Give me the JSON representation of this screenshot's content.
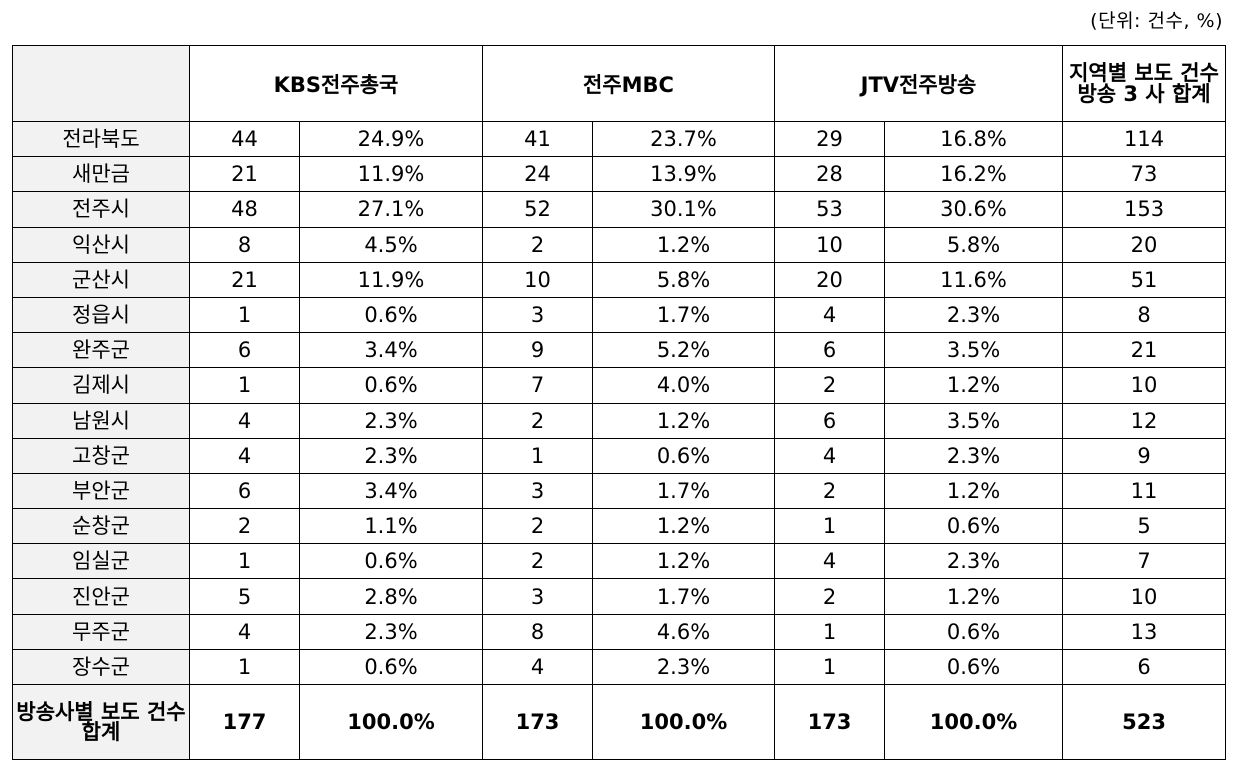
{
  "unit_label": "(단위: 건수, %)",
  "header": {
    "corner": "",
    "stations": [
      "KBS전주총국",
      "전주MBC",
      "JTV전주방송"
    ],
    "sum": "지역별 보도 건수 방송 3 사 합계"
  },
  "rows": [
    {
      "region": "전라북도",
      "kbs_n": "44",
      "kbs_p": "24.9%",
      "mbc_n": "41",
      "mbc_p": "23.7%",
      "jtv_n": "29",
      "jtv_p": "16.8%",
      "sum": "114"
    },
    {
      "region": "새만금",
      "kbs_n": "21",
      "kbs_p": "11.9%",
      "mbc_n": "24",
      "mbc_p": "13.9%",
      "jtv_n": "28",
      "jtv_p": "16.2%",
      "sum": "73"
    },
    {
      "region": "전주시",
      "kbs_n": "48",
      "kbs_p": "27.1%",
      "mbc_n": "52",
      "mbc_p": "30.1%",
      "jtv_n": "53",
      "jtv_p": "30.6%",
      "sum": "153"
    },
    {
      "region": "익산시",
      "kbs_n": "8",
      "kbs_p": "4.5%",
      "mbc_n": "2",
      "mbc_p": "1.2%",
      "jtv_n": "10",
      "jtv_p": "5.8%",
      "sum": "20"
    },
    {
      "region": "군산시",
      "kbs_n": "21",
      "kbs_p": "11.9%",
      "mbc_n": "10",
      "mbc_p": "5.8%",
      "jtv_n": "20",
      "jtv_p": "11.6%",
      "sum": "51"
    },
    {
      "region": "정읍시",
      "kbs_n": "1",
      "kbs_p": "0.6%",
      "mbc_n": "3",
      "mbc_p": "1.7%",
      "jtv_n": "4",
      "jtv_p": "2.3%",
      "sum": "8"
    },
    {
      "region": "완주군",
      "kbs_n": "6",
      "kbs_p": "3.4%",
      "mbc_n": "9",
      "mbc_p": "5.2%",
      "jtv_n": "6",
      "jtv_p": "3.5%",
      "sum": "21"
    },
    {
      "region": "김제시",
      "kbs_n": "1",
      "kbs_p": "0.6%",
      "mbc_n": "7",
      "mbc_p": "4.0%",
      "jtv_n": "2",
      "jtv_p": "1.2%",
      "sum": "10"
    },
    {
      "region": "남원시",
      "kbs_n": "4",
      "kbs_p": "2.3%",
      "mbc_n": "2",
      "mbc_p": "1.2%",
      "jtv_n": "6",
      "jtv_p": "3.5%",
      "sum": "12"
    },
    {
      "region": "고창군",
      "kbs_n": "4",
      "kbs_p": "2.3%",
      "mbc_n": "1",
      "mbc_p": "0.6%",
      "jtv_n": "4",
      "jtv_p": "2.3%",
      "sum": "9"
    },
    {
      "region": "부안군",
      "kbs_n": "6",
      "kbs_p": "3.4%",
      "mbc_n": "3",
      "mbc_p": "1.7%",
      "jtv_n": "2",
      "jtv_p": "1.2%",
      "sum": "11"
    },
    {
      "region": "순창군",
      "kbs_n": "2",
      "kbs_p": "1.1%",
      "mbc_n": "2",
      "mbc_p": "1.2%",
      "jtv_n": "1",
      "jtv_p": "0.6%",
      "sum": "5"
    },
    {
      "region": "임실군",
      "kbs_n": "1",
      "kbs_p": "0.6%",
      "mbc_n": "2",
      "mbc_p": "1.2%",
      "jtv_n": "4",
      "jtv_p": "2.3%",
      "sum": "7"
    },
    {
      "region": "진안군",
      "kbs_n": "5",
      "kbs_p": "2.8%",
      "mbc_n": "3",
      "mbc_p": "1.7%",
      "jtv_n": "2",
      "jtv_p": "1.2%",
      "sum": "10"
    },
    {
      "region": "무주군",
      "kbs_n": "4",
      "kbs_p": "2.3%",
      "mbc_n": "8",
      "mbc_p": "4.6%",
      "jtv_n": "1",
      "jtv_p": "0.6%",
      "sum": "13"
    },
    {
      "region": "장수군",
      "kbs_n": "1",
      "kbs_p": "0.6%",
      "mbc_n": "4",
      "mbc_p": "2.3%",
      "jtv_n": "1",
      "jtv_p": "0.6%",
      "sum": "6"
    }
  ],
  "totals": {
    "label": "방송사별 보도 건수 합계",
    "kbs_n": "177",
    "kbs_p": "100.0%",
    "mbc_n": "173",
    "mbc_p": "100.0%",
    "jtv_n": "173",
    "jtv_p": "100.0%",
    "sum": "523"
  }
}
